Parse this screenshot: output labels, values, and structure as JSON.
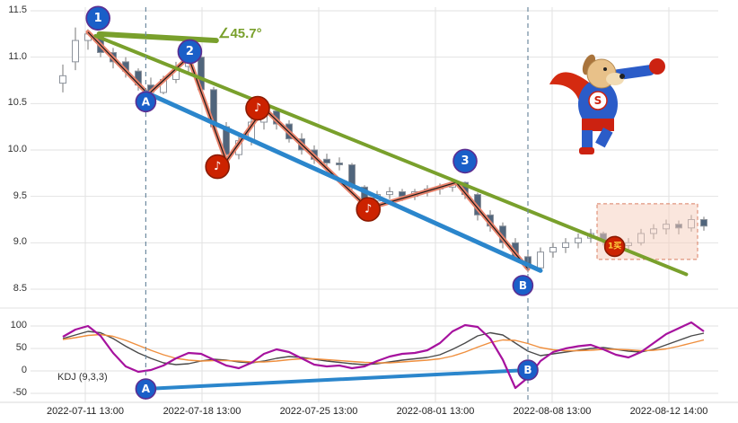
{
  "labels": {
    "kdj": "KDJ (9,3,3)",
    "angle": "∠45.7°",
    "dog_badge": "S"
  },
  "colors": {
    "up_candle": "#ffffff",
    "down_candle": "#50657c",
    "candle_border": "#8d939c",
    "wick": "#777777",
    "green_trend": "#79a02c",
    "blue_trend": "#2b86cc",
    "zigzag": "#e8826b",
    "zigzag_core": "#1a1a1a",
    "k_line": "#4a4a4a",
    "d_line": "#ef8f3e",
    "j_line": "#a6129e",
    "marker_blue_fill": "#1a5fc8",
    "marker_blue_ring": "#5b2d91",
    "marker_red_fill": "#cc2200",
    "buy_text": "#ffd23f",
    "region_fill": "#f6cdbc",
    "region_border": "#d97f63",
    "dashed_line": "#6e8aa0",
    "grid": "#e2e2e2"
  },
  "chart_data": {
    "type": "candlestick",
    "x_ticks": [
      "2022-07-11 13:00",
      "2022-07-18 13:00",
      "2022-07-25 13:00",
      "2022-08-01 13:00",
      "2022-08-08 13:00",
      "2022-08-12 14:00"
    ],
    "y_ticks_main": [
      "11.5",
      "11.0",
      "10.5",
      "10.0",
      "9.5",
      "9.0",
      "8.5"
    ],
    "y_ticks_kdj": [
      "100",
      "50",
      "0",
      "-50"
    ],
    "ylim_main": [
      8.5,
      11.5
    ],
    "ylim_kdj": [
      -50,
      100
    ],
    "candles": [
      [
        10.72,
        10.92,
        10.62,
        10.8
      ],
      [
        10.95,
        11.32,
        10.86,
        11.18
      ],
      [
        11.18,
        11.3,
        11.08,
        11.25
      ],
      [
        11.22,
        11.26,
        11.0,
        11.05
      ],
      [
        11.05,
        11.1,
        10.88,
        10.95
      ],
      [
        10.95,
        11.0,
        10.78,
        10.85
      ],
      [
        10.85,
        10.88,
        10.64,
        10.7
      ],
      [
        10.7,
        10.78,
        10.56,
        10.62
      ],
      [
        10.62,
        10.8,
        10.6,
        10.76
      ],
      [
        10.76,
        10.95,
        10.72,
        10.9
      ],
      [
        10.9,
        11.05,
        10.84,
        11.0
      ],
      [
        11.0,
        11.02,
        10.6,
        10.65
      ],
      [
        10.65,
        10.68,
        10.2,
        10.25
      ],
      [
        10.25,
        10.3,
        9.84,
        9.95
      ],
      [
        9.95,
        10.15,
        9.9,
        10.1
      ],
      [
        10.1,
        10.35,
        10.05,
        10.3
      ],
      [
        10.3,
        10.5,
        10.22,
        10.42
      ],
      [
        10.42,
        10.45,
        10.22,
        10.28
      ],
      [
        10.28,
        10.32,
        10.08,
        10.12
      ],
      [
        10.12,
        10.18,
        9.95,
        10.0
      ],
      [
        10.0,
        10.05,
        9.85,
        9.9
      ],
      [
        9.9,
        9.96,
        9.8,
        9.86
      ],
      [
        9.86,
        9.92,
        9.78,
        9.84
      ],
      [
        9.84,
        9.86,
        9.55,
        9.6
      ],
      [
        9.6,
        9.62,
        9.34,
        9.45
      ],
      [
        9.45,
        9.56,
        9.41,
        9.52
      ],
      [
        9.52,
        9.6,
        9.47,
        9.55
      ],
      [
        9.55,
        9.58,
        9.45,
        9.5
      ],
      [
        9.5,
        9.58,
        9.46,
        9.55
      ],
      [
        9.55,
        9.62,
        9.5,
        9.58
      ],
      [
        9.58,
        9.64,
        9.52,
        9.6
      ],
      [
        9.6,
        9.68,
        9.55,
        9.65
      ],
      [
        9.65,
        9.66,
        9.47,
        9.52
      ],
      [
        9.52,
        9.54,
        9.24,
        9.3
      ],
      [
        9.3,
        9.35,
        9.12,
        9.18
      ],
      [
        9.18,
        9.22,
        8.94,
        9.0
      ],
      [
        9.0,
        9.05,
        8.8,
        8.85
      ],
      [
        8.85,
        8.92,
        8.68,
        8.73
      ],
      [
        8.73,
        8.95,
        8.71,
        8.9
      ],
      [
        8.9,
        9.0,
        8.84,
        8.95
      ],
      [
        8.95,
        9.05,
        8.89,
        9.0
      ],
      [
        9.0,
        9.1,
        8.94,
        9.05
      ],
      [
        9.05,
        9.15,
        9.0,
        9.1
      ],
      [
        9.1,
        9.12,
        8.97,
        9.03
      ],
      [
        9.03,
        9.08,
        8.91,
        8.97
      ],
      [
        8.97,
        9.05,
        8.93,
        9.0
      ],
      [
        9.0,
        9.15,
        8.97,
        9.1
      ],
      [
        9.1,
        9.2,
        9.04,
        9.15
      ],
      [
        9.15,
        9.25,
        9.09,
        9.2
      ],
      [
        9.2,
        9.24,
        9.09,
        9.16
      ],
      [
        9.16,
        9.3,
        9.12,
        9.25
      ],
      [
        9.25,
        9.28,
        9.13,
        9.18
      ]
    ],
    "zigzag_points": [
      [
        2,
        11.27
      ],
      [
        6.8,
        10.6
      ],
      [
        10,
        11.0
      ],
      [
        13,
        9.88
      ],
      [
        16,
        10.45
      ],
      [
        24.3,
        9.37
      ],
      [
        31.3,
        9.65
      ],
      [
        37,
        8.72
      ]
    ],
    "trendlines": {
      "green_main": {
        "from": [
          2.6,
          11.23
        ],
        "to": [
          49.6,
          8.66
        ]
      },
      "green_angle_ref": {
        "from": [
          2.9,
          11.25
        ],
        "to": [
          12.2,
          11.18
        ]
      },
      "blue_main": {
        "from": [
          6.6,
          10.62
        ],
        "to": [
          38.0,
          8.7
        ]
      },
      "blue_kdj": {
        "from": [
          6.6,
          -40
        ],
        "to": [
          37.0,
          2
        ]
      }
    },
    "dashed_vlines": [
      6.6,
      37.0
    ],
    "region": {
      "from_i": 42.5,
      "to_i": 50.5,
      "from_p": 8.82,
      "to_p": 9.42
    },
    "kdj": {
      "k": [
        72,
        80,
        88,
        85,
        72,
        55,
        40,
        28,
        18,
        14,
        16,
        22,
        26,
        24,
        20,
        18,
        22,
        28,
        32,
        30,
        26,
        22,
        19,
        16,
        14,
        16,
        20,
        24,
        27,
        30,
        36,
        48,
        62,
        78,
        85,
        80,
        62,
        44,
        34,
        38,
        42,
        46,
        50,
        52,
        48,
        44,
        42,
        48,
        58,
        68,
        78,
        84
      ],
      "d": [
        70,
        74,
        79,
        81,
        77,
        68,
        57,
        46,
        36,
        28,
        24,
        22,
        23,
        23,
        22,
        20,
        20,
        22,
        25,
        27,
        27,
        25,
        23,
        21,
        19,
        18,
        18,
        20,
        22,
        24,
        27,
        33,
        42,
        53,
        63,
        69,
        68,
        61,
        52,
        47,
        45,
        45,
        46,
        48,
        48,
        47,
        45,
        46,
        49,
        55,
        62,
        69
      ],
      "j": [
        76,
        92,
        100,
        78,
        40,
        10,
        -2,
        2,
        12,
        28,
        40,
        38,
        25,
        12,
        6,
        18,
        38,
        48,
        42,
        28,
        14,
        10,
        12,
        6,
        10,
        22,
        32,
        38,
        40,
        46,
        62,
        88,
        102,
        98,
        72,
        25,
        -38,
        -15,
        22,
        42,
        50,
        55,
        58,
        48,
        36,
        30,
        42,
        62,
        82,
        95,
        108,
        88
      ]
    },
    "markers_main": [
      {
        "kind": "number",
        "label": "1",
        "i": 2.8,
        "p": 11.42
      },
      {
        "kind": "number",
        "label": "2",
        "i": 10.1,
        "p": 11.06
      },
      {
        "kind": "number",
        "label": "3",
        "i": 32.0,
        "p": 9.88
      },
      {
        "kind": "letter",
        "label": "A",
        "i": 6.6,
        "p": 10.52
      },
      {
        "kind": "letter",
        "label": "B",
        "i": 36.6,
        "p": 8.54
      },
      {
        "kind": "music",
        "label": "♪",
        "i": 12.3,
        "p": 9.82
      },
      {
        "kind": "music",
        "label": "♪",
        "i": 15.5,
        "p": 10.45
      },
      {
        "kind": "music",
        "label": "♪",
        "i": 24.3,
        "p": 9.36
      },
      {
        "kind": "buy",
        "label": "1买",
        "i": 43.9,
        "p": 8.96
      }
    ],
    "markers_kdj": [
      {
        "kind": "letter",
        "label": "A",
        "i": 6.6,
        "v": -40
      },
      {
        "kind": "letter",
        "label": "B",
        "i": 37.0,
        "v": 2
      }
    ]
  }
}
